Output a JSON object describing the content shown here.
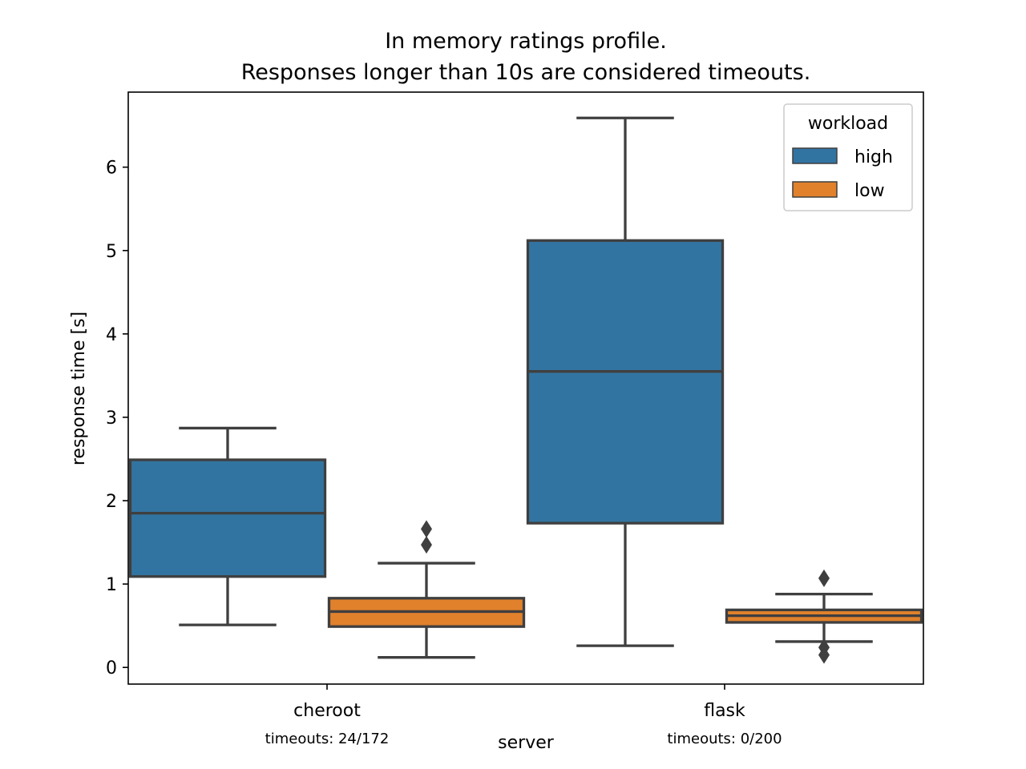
{
  "chart_data": {
    "type": "boxplot",
    "title_lines": [
      "In memory ratings profile.",
      "Responses longer than 10s are considered timeouts."
    ],
    "xlabel": "server",
    "ylabel": "response time [s]",
    "ylim": [
      -0.2,
      6.9
    ],
    "yticks": [
      0,
      1,
      2,
      3,
      4,
      5,
      6
    ],
    "categories": [
      "cheroot",
      "flask"
    ],
    "category_notes": [
      "timeouts: 24/172",
      "timeouts: 0/200"
    ],
    "legend": {
      "title": "workload",
      "placement": "top-right"
    },
    "series": [
      {
        "name": "high",
        "color": "#3274a1",
        "boxes": [
          {
            "whisker_low": 0.51,
            "q1": 1.09,
            "median": 1.85,
            "q3": 2.49,
            "whisker_high": 2.87,
            "outliers": []
          },
          {
            "whisker_low": 0.26,
            "q1": 1.73,
            "median": 3.55,
            "q3": 5.12,
            "whisker_high": 6.59,
            "outliers": []
          }
        ]
      },
      {
        "name": "low",
        "color": "#e1812c",
        "boxes": [
          {
            "whisker_low": 0.12,
            "q1": 0.49,
            "median": 0.67,
            "q3": 0.83,
            "whisker_high": 1.25,
            "outliers": [
              1.47,
              1.66
            ]
          },
          {
            "whisker_low": 0.31,
            "q1": 0.54,
            "median": 0.62,
            "q3": 0.69,
            "whisker_high": 0.88,
            "outliers": [
              0.15,
              0.24,
              1.07
            ]
          }
        ]
      }
    ]
  }
}
